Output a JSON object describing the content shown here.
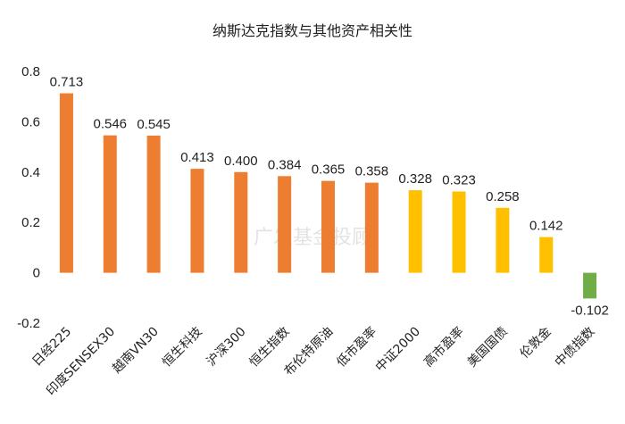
{
  "chart_data": {
    "type": "bar",
    "title": "纳斯达克指数与其他资产相关性",
    "categories": [
      "日经225",
      "印度SENSEX30",
      "越南VN30",
      "恒生科技",
      "沪深300",
      "恒生指数",
      "布伦特原油",
      "低市盈率",
      "中证2000",
      "高市盈率",
      "美国国债",
      "伦敦金",
      "中债指数"
    ],
    "values": [
      0.713,
      0.546,
      0.545,
      0.413,
      0.4,
      0.384,
      0.365,
      0.358,
      0.328,
      0.323,
      0.258,
      0.142,
      -0.102
    ],
    "value_labels": [
      "0.713",
      "0.546",
      "0.545",
      "0.413",
      "0.400",
      "0.384",
      "0.365",
      "0.358",
      "0.328",
      "0.323",
      "0.258",
      "0.142",
      "-0.102"
    ],
    "bar_colors": [
      "#ED7D31",
      "#ED7D31",
      "#ED7D31",
      "#ED7D31",
      "#ED7D31",
      "#ED7D31",
      "#ED7D31",
      "#ED7D31",
      "#FFC000",
      "#FFC000",
      "#FFC000",
      "#FFC000",
      "#70AD47"
    ],
    "yticks": [
      0.8,
      0.6,
      0.4,
      0.2,
      0,
      -0.2
    ],
    "ytick_labels": [
      "0.8",
      "0.6",
      "0.4",
      "0.2",
      "0",
      "-0.2"
    ],
    "ylim": [
      -0.2,
      0.8
    ],
    "xlabel": "",
    "ylabel": "",
    "grid": false,
    "legend": "none"
  },
  "watermark": "广发基金投顾"
}
